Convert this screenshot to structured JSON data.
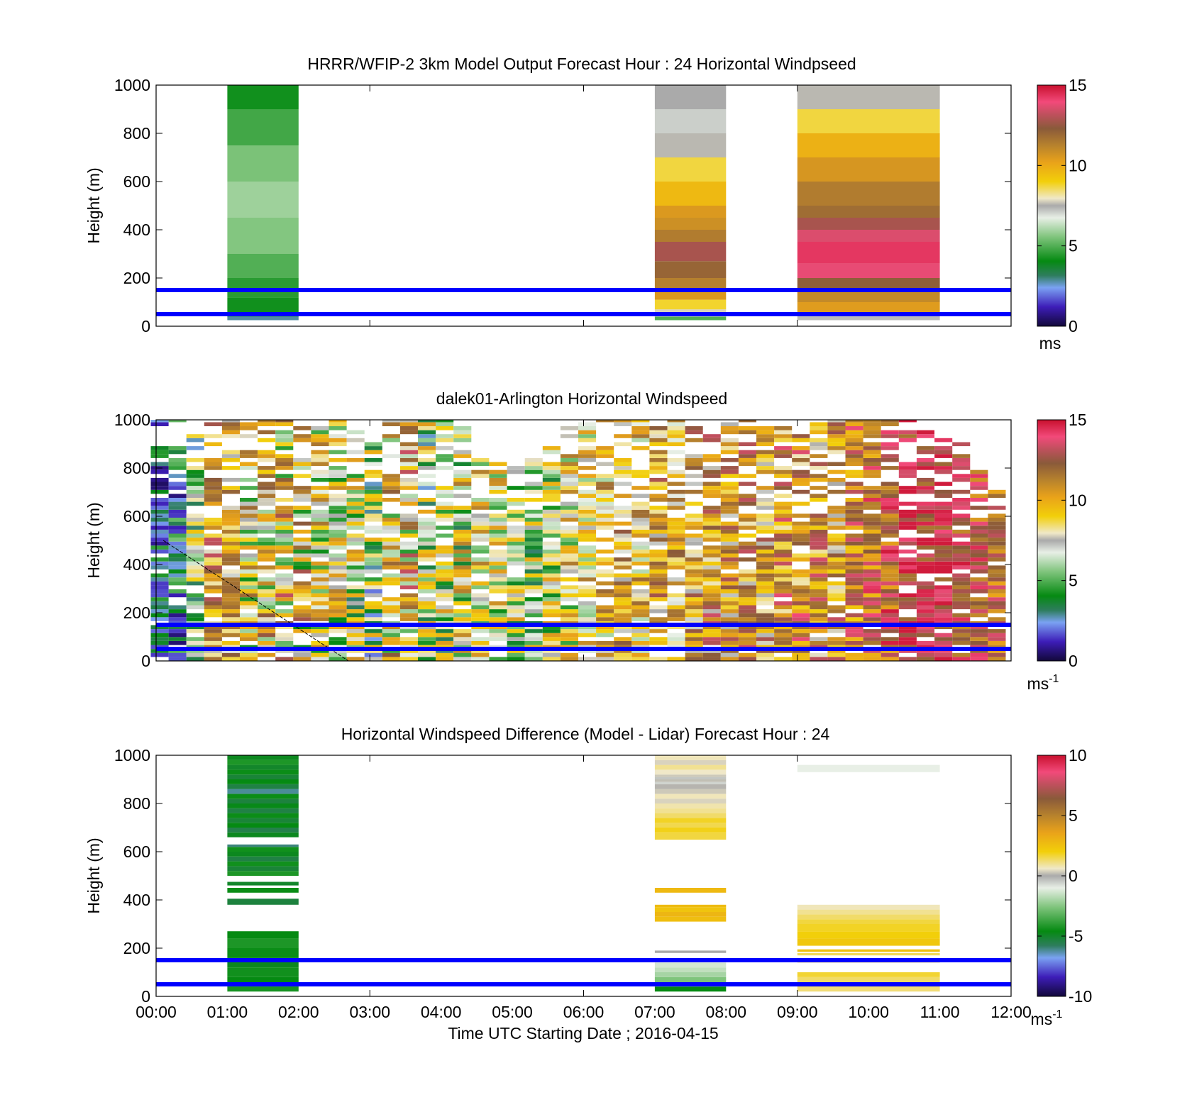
{
  "chart_data": [
    {
      "type": "heatmap",
      "title": "HRRR/WFIP-2 3km Model Output   Forecast Hour : 24 Horizontal Windpseed",
      "ylabel": "Height (m)",
      "xlabel": "",
      "xlim": [
        0,
        12
      ],
      "ylim": [
        0,
        1000
      ],
      "yticks": [
        0,
        200,
        400,
        600,
        800,
        1000
      ],
      "cbar": {
        "range": [
          0,
          15
        ],
        "ticks": [
          "0",
          "5",
          "10",
          "15"
        ],
        "unit": "ms",
        "unit_sup": ""
      },
      "hlines": [
        50,
        150
      ],
      "columns": [
        {
          "t0": 1,
          "t1": 2,
          "bins": [
            [
              25,
              40,
              2.8
            ],
            [
              40,
              120,
              4.2
            ],
            [
              120,
              200,
              4.5
            ],
            [
              200,
              300,
              5.0
            ],
            [
              300,
              450,
              5.6
            ],
            [
              450,
              600,
              5.9
            ],
            [
              600,
              750,
              5.5
            ],
            [
              750,
              900,
              4.8
            ],
            [
              900,
              1000,
              4.2
            ]
          ]
        },
        {
          "t0": 7,
          "t1": 8,
          "bins": [
            [
              25,
              40,
              5.0
            ],
            [
              40,
              70,
              7.8
            ],
            [
              70,
              110,
              8.8
            ],
            [
              110,
              150,
              10.5
            ],
            [
              150,
              200,
              11.3
            ],
            [
              200,
              270,
              12.0
            ],
            [
              270,
              350,
              12.8
            ],
            [
              350,
              400,
              11.4
            ],
            [
              400,
              450,
              10.8
            ],
            [
              450,
              500,
              10.5
            ],
            [
              500,
              600,
              9.6
            ],
            [
              600,
              700,
              8.7
            ],
            [
              700,
              800,
              7.6
            ],
            [
              800,
              900,
              7.1
            ],
            [
              900,
              1000,
              7.5
            ]
          ]
        },
        {
          "t0": 9,
          "t1": 11,
          "bins": [
            [
              25,
              50,
              7.3
            ],
            [
              50,
              100,
              10.4
            ],
            [
              100,
              150,
              11.0
            ],
            [
              150,
              200,
              12.2
            ],
            [
              200,
              260,
              13.8
            ],
            [
              260,
              350,
              14.3
            ],
            [
              350,
              400,
              13.6
            ],
            [
              400,
              450,
              12.8
            ],
            [
              450,
              500,
              11.8
            ],
            [
              500,
              600,
              11.4
            ],
            [
              600,
              700,
              10.6
            ],
            [
              700,
              800,
              9.8
            ],
            [
              800,
              900,
              8.7
            ],
            [
              900,
              1000,
              7.6
            ]
          ]
        }
      ]
    },
    {
      "type": "heatmap",
      "title": "dalek01-Arlington  Horizontal Windspeed",
      "ylabel": "Height (m)",
      "xlabel": "",
      "xlim": [
        0,
        12
      ],
      "ylim": [
        0,
        1000
      ],
      "yticks": [
        0,
        200,
        400,
        600,
        800,
        1000
      ],
      "cbar": {
        "range": [
          0,
          15
        ],
        "ticks": [
          "0",
          "5",
          "10",
          "15"
        ],
        "unit": "ms",
        "unit_sup": "-1"
      },
      "hlines": [
        50,
        150
      ],
      "profile_times": [
        0.05,
        0.3,
        0.55,
        0.8,
        1.05,
        1.3,
        1.55,
        1.8,
        2.05,
        2.3,
        2.55,
        2.8,
        3.05,
        3.3,
        3.55,
        3.8,
        4.05,
        4.3,
        4.55,
        4.8,
        5.05,
        5.3,
        5.55,
        5.8,
        6.05,
        6.3,
        6.55,
        6.8,
        7.05,
        7.3,
        7.55,
        7.8,
        8.05,
        8.3,
        8.55,
        8.8,
        9.05,
        9.3,
        9.55,
        9.8,
        10.05,
        10.3,
        10.55,
        10.8,
        11.05,
        11.3,
        11.55,
        11.8
      ],
      "profile_tops": [
        1000,
        1000,
        960,
        1000,
        1000,
        1000,
        1000,
        1000,
        990,
        960,
        1000,
        960,
        900,
        1000,
        1000,
        1000,
        1000,
        960,
        860,
        820,
        800,
        830,
        880,
        960,
        1000,
        1000,
        1000,
        1000,
        1000,
        1000,
        970,
        930,
        980,
        1000,
        1000,
        970,
        940,
        1000,
        1000,
        1000,
        1000,
        1000,
        1000,
        980,
        920,
        900,
        830,
        730
      ],
      "profile_means": [
        2.5,
        3.0,
        6.0,
        10.5,
        9.8,
        8.0,
        8.5,
        9.0,
        8.5,
        8.0,
        7.5,
        7.0,
        6.0,
        8.5,
        9.0,
        6.5,
        6.8,
        7.5,
        8.0,
        7.5,
        7.0,
        6.5,
        7.0,
        8.0,
        8.5,
        9.0,
        9.5,
        9.0,
        10.0,
        9.5,
        10.0,
        10.5,
        10.0,
        10.5,
        10.0,
        11.0,
        11.0,
        10.5,
        10.5,
        11.5,
        12.0,
        12.5,
        13.5,
        13.5,
        13.5,
        13.0,
        12.5,
        12.0
      ],
      "profile_spread": [
        2.5,
        2.5,
        3.5,
        3.0,
        3.0,
        4.0,
        4.0,
        4.5,
        4.5,
        4.0,
        4.0,
        4.0,
        4.0,
        4.0,
        4.5,
        4.0,
        4.0,
        4.5,
        3.5,
        3.5,
        3.5,
        3.5,
        3.5,
        3.5,
        3.0,
        3.0,
        3.0,
        3.0,
        3.0,
        3.0,
        3.0,
        3.0,
        3.0,
        3.0,
        3.0,
        3.0,
        3.0,
        3.0,
        3.0,
        2.5,
        2.5,
        2.5,
        2.0,
        2.0,
        2.0,
        2.0,
        2.0,
        2.0
      ],
      "bin_height_m": 16.5,
      "diagonal_line": [
        [
          0.1,
          500
        ],
        [
          2.7,
          0
        ]
      ]
    },
    {
      "type": "heatmap",
      "title": "Horizontal Windspeed Difference (Model - Lidar) Forecast Hour : 24",
      "ylabel": "Height (m)",
      "xlabel": "Time UTC  Starting Date ; 2016-04-15",
      "xlim": [
        0,
        12
      ],
      "ylim": [
        0,
        1000
      ],
      "yticks": [
        0,
        200,
        400,
        600,
        800,
        1000
      ],
      "xticks": [
        "00:00",
        "01:00",
        "02:00",
        "03:00",
        "04:00",
        "05:00",
        "06:00",
        "07:00",
        "08:00",
        "09:00",
        "10:00",
        "11:00",
        "12:00"
      ],
      "cbar": {
        "range": [
          -10,
          10
        ],
        "ticks": [
          "-10",
          "-5",
          "0",
          "5",
          "10"
        ],
        "unit": "ms",
        "unit_sup": "-1"
      },
      "hlines": [
        50,
        150
      ],
      "columns": [
        {
          "t0": 1,
          "t1": 2,
          "bins": [
            [
              20,
              40,
              -4.3
            ],
            [
              40,
              80,
              -4.6
            ],
            [
              80,
              120,
              -4.4
            ],
            [
              120,
              160,
              -4.8
            ],
            [
              160,
              200,
              -4.5
            ],
            [
              200,
              240,
              -4.2
            ],
            [
              240,
              270,
              -4.6
            ],
            [
              380,
              405,
              -5.3
            ],
            [
              430,
              450,
              -4.5
            ],
            [
              460,
              475,
              -5.0
            ],
            [
              500,
              520,
              -4.2
            ],
            [
              520,
              540,
              -5.2
            ],
            [
              540,
              560,
              -4.4
            ],
            [
              560,
              580,
              -5.4
            ],
            [
              580,
              600,
              -4.8
            ],
            [
              600,
              620,
              -4.4
            ],
            [
              620,
              630,
              -6.0
            ],
            [
              660,
              680,
              -4.8
            ],
            [
              680,
              700,
              -5.5
            ],
            [
              700,
              720,
              -4.6
            ],
            [
              720,
              740,
              -5.2
            ],
            [
              740,
              760,
              -4.5
            ],
            [
              760,
              780,
              -5.4
            ],
            [
              780,
              800,
              -4.7
            ],
            [
              800,
              820,
              -5.3
            ],
            [
              820,
              840,
              -4.5
            ],
            [
              840,
              860,
              -6.2
            ],
            [
              860,
              880,
              -5.4
            ],
            [
              880,
              900,
              -4.6
            ],
            [
              900,
              920,
              -5.2
            ],
            [
              920,
              940,
              -4.5
            ],
            [
              940,
              960,
              -5.0
            ],
            [
              960,
              980,
              -4.2
            ],
            [
              980,
              1000,
              -4.8
            ]
          ]
        },
        {
          "t0": 7,
          "t1": 8,
          "bins": [
            [
              20,
              40,
              -4.6
            ],
            [
              40,
              60,
              -3.3
            ],
            [
              60,
              80,
              -2.6
            ],
            [
              80,
              100,
              -2.0
            ],
            [
              100,
              120,
              -1.6
            ],
            [
              120,
              140,
              -1.3
            ],
            [
              140,
              150,
              -1.0
            ],
            [
              180,
              190,
              0.0
            ],
            [
              310,
              330,
              2.6
            ],
            [
              330,
              350,
              2.9
            ],
            [
              350,
              370,
              2.4
            ],
            [
              370,
              380,
              2.7
            ],
            [
              430,
              450,
              2.8
            ],
            [
              650,
              680,
              1.6
            ],
            [
              680,
              700,
              1.9
            ],
            [
              700,
              720,
              1.5
            ],
            [
              720,
              740,
              1.8
            ],
            [
              740,
              760,
              1.3
            ],
            [
              760,
              780,
              1.0
            ],
            [
              780,
              800,
              0.8
            ],
            [
              800,
              820,
              0.4
            ],
            [
              820,
              840,
              0.7
            ],
            [
              840,
              860,
              0.3
            ],
            [
              860,
              880,
              0.1
            ],
            [
              880,
              890,
              -0.6
            ],
            [
              890,
              900,
              0.2
            ],
            [
              900,
              910,
              -0.4
            ],
            [
              910,
              920,
              0.3
            ],
            [
              920,
              940,
              0.6
            ],
            [
              940,
              960,
              1.0
            ],
            [
              960,
              980,
              0.4
            ],
            [
              980,
              1000,
              0.7
            ]
          ]
        },
        {
          "t0": 9,
          "t1": 11,
          "bins": [
            [
              20,
              40,
              1.2
            ],
            [
              40,
              60,
              1.8
            ],
            [
              60,
              80,
              1.3
            ],
            [
              80,
              100,
              1.7
            ],
            [
              140,
              150,
              1.2
            ],
            [
              170,
              180,
              1.4
            ],
            [
              185,
              195,
              2.5
            ],
            [
              210,
              240,
              2.3
            ],
            [
              240,
              270,
              2.0
            ],
            [
              270,
              300,
              1.8
            ],
            [
              300,
              320,
              1.6
            ],
            [
              320,
              340,
              1.3
            ],
            [
              340,
              360,
              1.0
            ],
            [
              360,
              380,
              0.7
            ],
            [
              930,
              960,
              -1.0
            ]
          ]
        }
      ]
    }
  ]
}
